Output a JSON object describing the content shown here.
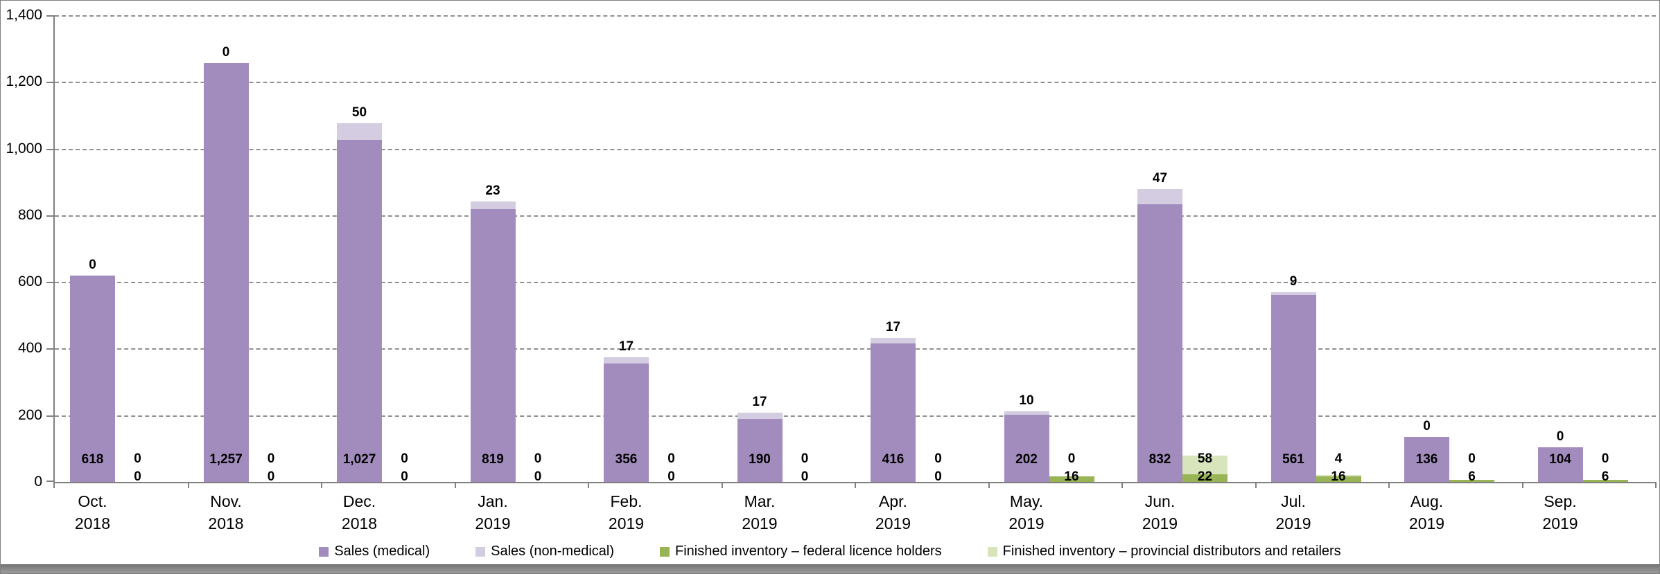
{
  "chart_data": {
    "type": "bar",
    "subtype": "clustered-stacked-column",
    "title": "",
    "xlabel": "",
    "ylabel": "",
    "ylim": [
      0,
      1400
    ],
    "y_ticks": [
      0,
      200,
      400,
      600,
      800,
      1000,
      1200,
      1400
    ],
    "grid": "horizontal-dashed",
    "legend_position": "bottom",
    "categories": [
      {
        "month": "Oct.",
        "year": "2018"
      },
      {
        "month": "Nov.",
        "year": "2018"
      },
      {
        "month": "Dec.",
        "year": "2018"
      },
      {
        "month": "Jan.",
        "year": "2019"
      },
      {
        "month": "Feb.",
        "year": "2019"
      },
      {
        "month": "Mar.",
        "year": "2019"
      },
      {
        "month": "Apr.",
        "year": "2019"
      },
      {
        "month": "May.",
        "year": "2019"
      },
      {
        "month": "Jun.",
        "year": "2019"
      },
      {
        "month": "Jul.",
        "year": "2019"
      },
      {
        "month": "Aug.",
        "year": "2019"
      },
      {
        "month": "Sep.",
        "year": "2019"
      }
    ],
    "series": [
      {
        "name": "Sales (medical)",
        "stack": "sales",
        "color": "#A18CBD",
        "values": [
          618,
          1257,
          1027,
          819,
          356,
          190,
          416,
          202,
          832,
          561,
          136,
          104
        ]
      },
      {
        "name": "Sales (non-medical)",
        "stack": "sales",
        "color": "#D4CCE1",
        "values": [
          0,
          0,
          50,
          23,
          17,
          17,
          17,
          10,
          47,
          9,
          0,
          0
        ]
      },
      {
        "name": "Finished inventory – federal licence holders",
        "stack": "inventory",
        "color": "#98B455",
        "values": [
          0,
          0,
          0,
          0,
          0,
          0,
          0,
          16,
          22,
          16,
          6,
          6
        ]
      },
      {
        "name": "Finished inventory – provincial distributors and retailers",
        "stack": "inventory",
        "color": "#D7E4BC",
        "values": [
          0,
          0,
          0,
          0,
          0,
          0,
          0,
          0,
          58,
          4,
          0,
          0
        ]
      }
    ],
    "colors": {
      "gridline": "#8F8F8F",
      "axis": "#808080",
      "label_text": "#000000"
    }
  }
}
